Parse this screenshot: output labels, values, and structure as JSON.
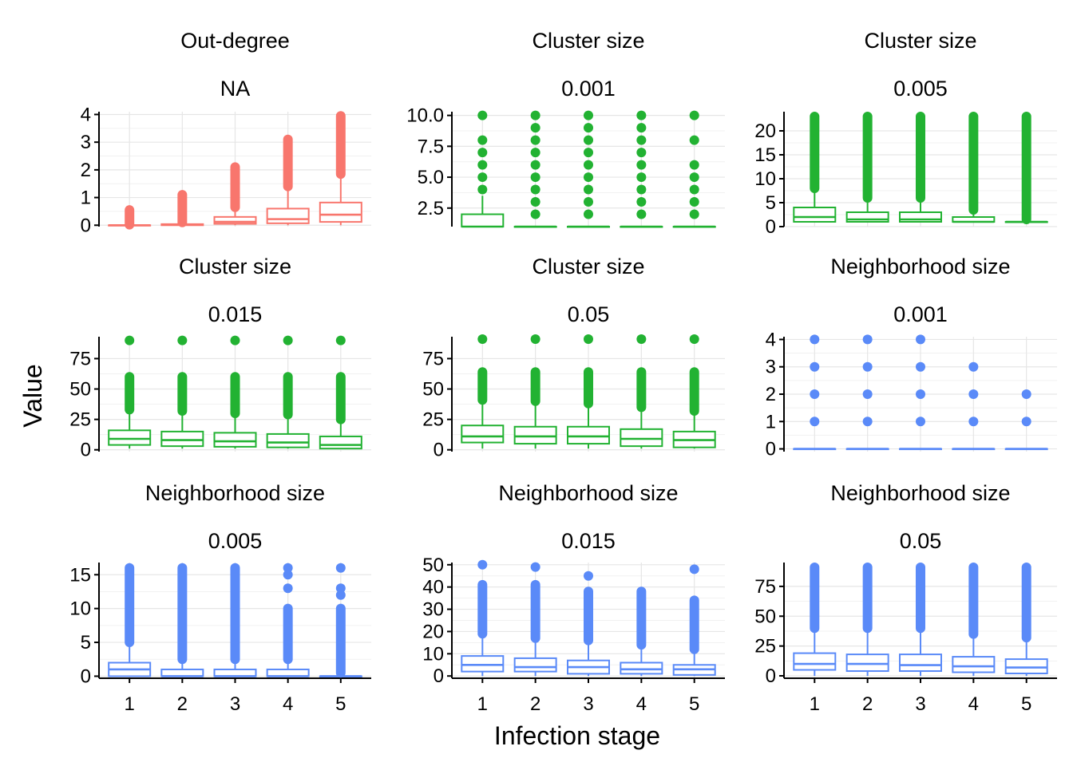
{
  "chart_data": {
    "type": "box",
    "xlabel": "Infection stage",
    "ylabel": "Value",
    "categories": [
      "1",
      "2",
      "3",
      "4",
      "5"
    ],
    "colors": {
      "red": "#F8766D",
      "green": "#22B232",
      "blue": "#5A8AF8"
    },
    "panels": [
      {
        "facet": "Out-degree",
        "param": "NA",
        "color": "red",
        "ylim": [
          -0.05,
          4.1
        ],
        "yticks": [
          0,
          1,
          2,
          3,
          4
        ],
        "ytick_labels": [
          "0",
          "1",
          "2",
          "3",
          "4"
        ],
        "boxes": [
          {
            "q1": 0,
            "median": 0,
            "q3": 0,
            "lo": 0,
            "hi": 0,
            "out_min": 0.02,
            "out_max": 0.55
          },
          {
            "q1": 0,
            "median": 0.02,
            "q3": 0.04,
            "lo": 0,
            "hi": 0.1,
            "out_min": 0.1,
            "out_max": 1.1
          },
          {
            "q1": 0.05,
            "median": 0.12,
            "q3": 0.3,
            "lo": 0,
            "hi": 0.65,
            "out_min": 0.65,
            "out_max": 2.1
          },
          {
            "q1": 0.07,
            "median": 0.22,
            "q3": 0.6,
            "lo": 0,
            "hi": 1.4,
            "out_min": 1.4,
            "out_max": 3.1
          },
          {
            "q1": 0.12,
            "median": 0.38,
            "q3": 0.82,
            "lo": 0,
            "hi": 1.85,
            "out_min": 1.85,
            "out_max": 3.95
          }
        ]
      },
      {
        "facet": "Cluster size",
        "param": "0.001",
        "color": "green",
        "ylim": [
          1,
          10.3
        ],
        "yticks": [
          2.5,
          5,
          7.5,
          10
        ],
        "ytick_labels": [
          "2.5",
          "5.0",
          "7.5",
          "10.0"
        ],
        "boxes": [
          {
            "q1": 1,
            "median": 1,
            "q3": 2,
            "lo": 1,
            "hi": 3.5,
            "outliers": [
              4,
              5,
              6,
              7,
              8,
              10
            ]
          },
          {
            "q1": 1,
            "median": 1,
            "q3": 1,
            "lo": 1,
            "hi": 1,
            "outliers": [
              2,
              3,
              4,
              5,
              6,
              7,
              8,
              9,
              10
            ]
          },
          {
            "q1": 1,
            "median": 1,
            "q3": 1,
            "lo": 1,
            "hi": 1,
            "outliers": [
              2,
              3,
              4,
              5,
              6,
              7,
              8,
              9,
              10
            ]
          },
          {
            "q1": 1,
            "median": 1,
            "q3": 1,
            "lo": 1,
            "hi": 1,
            "outliers": [
              2,
              3,
              4,
              5,
              6,
              7,
              8,
              9,
              10
            ]
          },
          {
            "q1": 1,
            "median": 1,
            "q3": 1,
            "lo": 1,
            "hi": 1,
            "outliers": [
              2,
              3,
              4,
              5,
              6,
              8,
              10
            ]
          }
        ]
      },
      {
        "facet": "Cluster size",
        "param": "0.005",
        "color": "green",
        "ylim": [
          0,
          24
        ],
        "yticks": [
          0,
          5,
          10,
          15,
          20
        ],
        "ytick_labels": [
          "0",
          "5",
          "10",
          "15",
          "20"
        ],
        "boxes": [
          {
            "q1": 1,
            "median": 2,
            "q3": 4,
            "lo": 1,
            "hi": 8,
            "out_min": 8,
            "out_max": 23
          },
          {
            "q1": 1,
            "median": 1.5,
            "q3": 3,
            "lo": 1,
            "hi": 6,
            "out_min": 6,
            "out_max": 23
          },
          {
            "q1": 1,
            "median": 1.5,
            "q3": 3,
            "lo": 1,
            "hi": 6,
            "out_min": 6,
            "out_max": 23
          },
          {
            "q1": 1,
            "median": 1,
            "q3": 2,
            "lo": 1,
            "hi": 3.5,
            "out_min": 3.5,
            "out_max": 23
          },
          {
            "q1": 1,
            "median": 1,
            "q3": 1,
            "lo": 1,
            "hi": 1,
            "out_min": 1.5,
            "out_max": 23
          }
        ]
      },
      {
        "facet": "Cluster size",
        "param": "0.015",
        "color": "green",
        "ylim": [
          -1.5,
          93
        ],
        "yticks": [
          0,
          25,
          50,
          75
        ],
        "ytick_labels": [
          "0",
          "25",
          "50",
          "75"
        ],
        "boxes": [
          {
            "q1": 4,
            "median": 9,
            "q3": 16,
            "lo": 1,
            "hi": 33,
            "out_min": 33,
            "out_max": 60,
            "outliers": [
              90
            ]
          },
          {
            "q1": 3,
            "median": 8,
            "q3": 15,
            "lo": 1,
            "hi": 32,
            "out_min": 32,
            "out_max": 60,
            "outliers": [
              90
            ]
          },
          {
            "q1": 2.5,
            "median": 7,
            "q3": 14,
            "lo": 1,
            "hi": 30,
            "out_min": 30,
            "out_max": 60,
            "outliers": [
              90
            ]
          },
          {
            "q1": 2,
            "median": 6,
            "q3": 13,
            "lo": 1,
            "hi": 29,
            "out_min": 29,
            "out_max": 60,
            "outliers": [
              90
            ]
          },
          {
            "q1": 1,
            "median": 4,
            "q3": 11,
            "lo": 1,
            "hi": 25,
            "out_min": 25,
            "out_max": 60,
            "outliers": [
              90
            ]
          }
        ]
      },
      {
        "facet": "Cluster size",
        "param": "0.05",
        "color": "green",
        "ylim": [
          -1.5,
          93
        ],
        "yticks": [
          0,
          25,
          50,
          75
        ],
        "ytick_labels": [
          "0",
          "25",
          "50",
          "75"
        ],
        "boxes": [
          {
            "q1": 6,
            "median": 11,
            "q3": 20,
            "lo": 1,
            "hi": 41,
            "out_min": 41,
            "out_max": 64,
            "outliers": [
              91
            ]
          },
          {
            "q1": 5,
            "median": 11,
            "q3": 19,
            "lo": 1,
            "hi": 40,
            "out_min": 40,
            "out_max": 64,
            "outliers": [
              91
            ]
          },
          {
            "q1": 5,
            "median": 11,
            "q3": 19,
            "lo": 1,
            "hi": 38,
            "out_min": 38,
            "out_max": 64,
            "outliers": [
              91
            ]
          },
          {
            "q1": 3,
            "median": 9,
            "q3": 17,
            "lo": 1,
            "hi": 35,
            "out_min": 35,
            "out_max": 64,
            "outliers": [
              91
            ]
          },
          {
            "q1": 2,
            "median": 8,
            "q3": 15,
            "lo": 1,
            "hi": 32,
            "out_min": 32,
            "out_max": 64,
            "outliers": [
              91
            ]
          }
        ]
      },
      {
        "facet": "Neighborhood size",
        "param": "0.001",
        "color": "blue",
        "ylim": [
          -0.1,
          4.1
        ],
        "yticks": [
          0,
          1,
          2,
          3,
          4
        ],
        "ytick_labels": [
          "0",
          "1",
          "2",
          "3",
          "4"
        ],
        "boxes": [
          {
            "q1": 0,
            "median": 0,
            "q3": 0,
            "lo": 0,
            "hi": 0,
            "outliers": [
              1,
              2,
              3,
              4
            ]
          },
          {
            "q1": 0,
            "median": 0,
            "q3": 0,
            "lo": 0,
            "hi": 0,
            "outliers": [
              1,
              2,
              3,
              4
            ]
          },
          {
            "q1": 0,
            "median": 0,
            "q3": 0,
            "lo": 0,
            "hi": 0,
            "outliers": [
              1,
              2,
              3,
              4
            ]
          },
          {
            "q1": 0,
            "median": 0,
            "q3": 0,
            "lo": 0,
            "hi": 0,
            "outliers": [
              1,
              2,
              3
            ]
          },
          {
            "q1": 0,
            "median": 0,
            "q3": 0,
            "lo": 0,
            "hi": 0,
            "outliers": [
              1,
              2
            ]
          }
        ]
      },
      {
        "facet": "Neighborhood size",
        "param": "0.005",
        "color": "blue",
        "ylim": [
          -0.3,
          16.8
        ],
        "yticks": [
          0,
          5,
          10,
          15
        ],
        "ytick_labels": [
          "0",
          "5",
          "10",
          "15"
        ],
        "boxes": [
          {
            "q1": 0,
            "median": 1,
            "q3": 2,
            "lo": 0,
            "hi": 5,
            "out_min": 5,
            "out_max": 16
          },
          {
            "q1": 0,
            "median": 0,
            "q3": 1,
            "lo": 0,
            "hi": 2.5,
            "out_min": 2.5,
            "out_max": 16
          },
          {
            "q1": 0,
            "median": 0,
            "q3": 1,
            "lo": 0,
            "hi": 2.5,
            "out_min": 2.5,
            "out_max": 16
          },
          {
            "q1": 0,
            "median": 0,
            "q3": 1,
            "lo": 0,
            "hi": 2.5,
            "out_min": 2.5,
            "out_max": 10,
            "outliers": [
              13,
              15,
              16
            ]
          },
          {
            "q1": 0,
            "median": 0,
            "q3": 0,
            "lo": 0,
            "hi": 0,
            "out_min": 0.5,
            "out_max": 10,
            "outliers": [
              12,
              13,
              16
            ]
          }
        ]
      },
      {
        "facet": "Neighborhood size",
        "param": "0.015",
        "color": "blue",
        "ylim": [
          -1,
          51
        ],
        "yticks": [
          0,
          10,
          20,
          30,
          40,
          50
        ],
        "ytick_labels": [
          "0",
          "10",
          "20",
          "30",
          "40",
          "50"
        ],
        "boxes": [
          {
            "q1": 2,
            "median": 5,
            "q3": 9,
            "lo": 0,
            "hi": 19,
            "out_min": 19,
            "out_max": 41,
            "outliers": [
              50
            ]
          },
          {
            "q1": 2,
            "median": 4,
            "q3": 8,
            "lo": 0,
            "hi": 17,
            "out_min": 17,
            "out_max": 41,
            "outliers": [
              49
            ]
          },
          {
            "q1": 1,
            "median": 4,
            "q3": 7,
            "lo": 0,
            "hi": 16,
            "out_min": 16,
            "out_max": 38,
            "outliers": [
              45
            ]
          },
          {
            "q1": 1,
            "median": 3,
            "q3": 6,
            "lo": 0,
            "hi": 14,
            "out_min": 14,
            "out_max": 38
          },
          {
            "q1": 0.5,
            "median": 3,
            "q3": 5,
            "lo": 0,
            "hi": 12,
            "out_min": 12,
            "out_max": 34,
            "outliers": [
              48
            ]
          }
        ]
      },
      {
        "facet": "Neighborhood size",
        "param": "0.05",
        "color": "blue",
        "ylim": [
          -2,
          95
        ],
        "yticks": [
          0,
          25,
          50,
          75
        ],
        "ytick_labels": [
          "0",
          "25",
          "50",
          "75"
        ],
        "boxes": [
          {
            "q1": 5,
            "median": 10,
            "q3": 19,
            "lo": 0,
            "hi": 40,
            "out_min": 40,
            "out_max": 91
          },
          {
            "q1": 4,
            "median": 10,
            "q3": 18,
            "lo": 0,
            "hi": 40,
            "out_min": 40,
            "out_max": 91
          },
          {
            "q1": 4,
            "median": 9,
            "q3": 18,
            "lo": 0,
            "hi": 40,
            "out_min": 40,
            "out_max": 91
          },
          {
            "q1": 3,
            "median": 8,
            "q3": 16,
            "lo": 0,
            "hi": 35,
            "out_min": 35,
            "out_max": 91
          },
          {
            "q1": 2,
            "median": 7,
            "q3": 14,
            "lo": 0,
            "hi": 32,
            "out_min": 32,
            "out_max": 91
          }
        ]
      }
    ]
  }
}
